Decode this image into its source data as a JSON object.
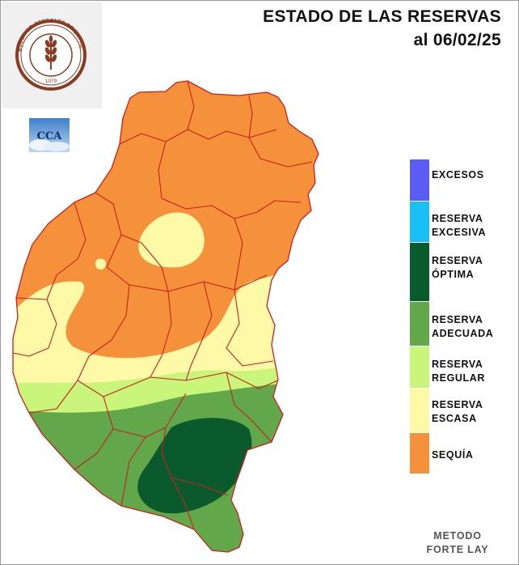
{
  "title": {
    "line1": "ESTADO DE LAS RESERVAS",
    "line2": "al 06/02/25"
  },
  "logos": {
    "institution": {
      "icon": "wheat-seal-icon",
      "ring_text": "BOLSA DE CEREALES DE ENTRE RÍOS",
      "year": "1979"
    },
    "cca": {
      "icon": "cca-logo-icon",
      "text": "CCA"
    }
  },
  "legend": [
    {
      "label": "EXCESOS",
      "color": "#5b5bf5"
    },
    {
      "label": "RESERVA\nEXCESIVA",
      "color": "#19c0f5"
    },
    {
      "label": "RESERVA\nÓPTIMA",
      "color": "#0b5a2e"
    },
    {
      "label": "RESERVA\nADECUADA",
      "color": "#62a84a"
    },
    {
      "label": "RESERVA\nREGULAR",
      "color": "#c9f57a"
    },
    {
      "label": "RESERVA\nESCASA",
      "color": "#fdf9a6"
    },
    {
      "label": "SEQUÍA",
      "color": "#f4913a"
    }
  ],
  "footer": {
    "method_line1": "METODO",
    "method_line2": "FORTE LAY"
  }
}
